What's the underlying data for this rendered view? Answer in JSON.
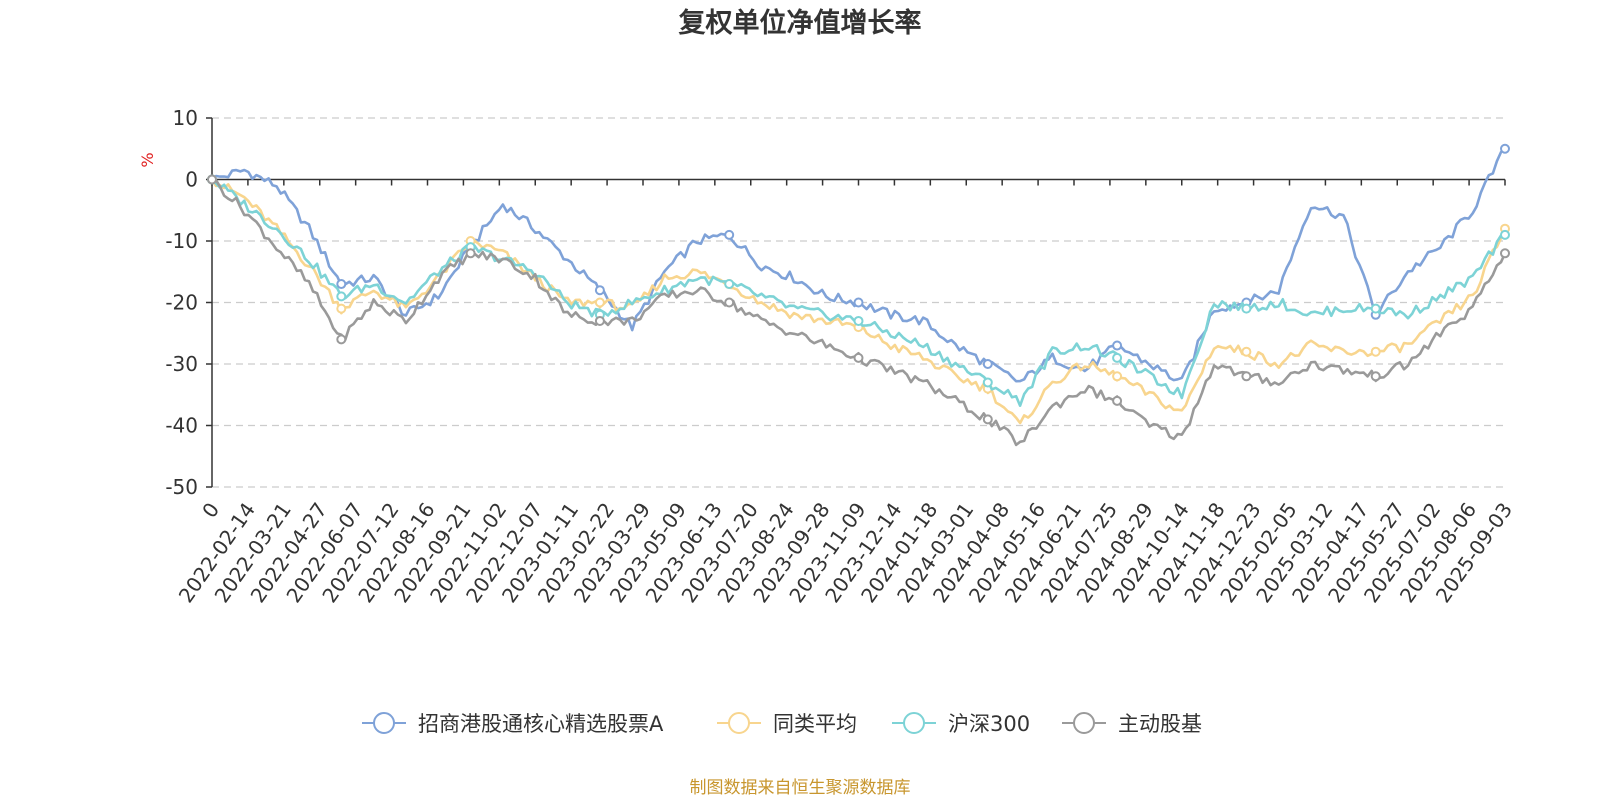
{
  "chart_data": {
    "type": "line",
    "title": "复权单位净值增长率",
    "ylabel": "%",
    "ylim": [
      -50,
      10
    ],
    "yticks": [
      10,
      0,
      -10,
      -20,
      -30,
      -40,
      -50
    ],
    "grid": true,
    "legend_position": "bottom",
    "source_note": "制图数据来自恒生聚源数据库",
    "x_tick_labels": [
      "0",
      "2022-02-14",
      "2022-03-21",
      "2022-04-27",
      "2022-06-07",
      "2022-07-12",
      "2022-08-16",
      "2022-09-21",
      "2022-11-02",
      "2022-12-07",
      "2023-01-11",
      "2023-02-22",
      "2023-03-29",
      "2023-05-09",
      "2023-06-13",
      "2023-07-20",
      "2023-08-24",
      "2023-09-28",
      "2023-11-09",
      "2023-12-14",
      "2024-01-18",
      "2024-03-01",
      "2024-04-08",
      "2024-05-16",
      "2024-06-21",
      "2024-07-25",
      "2024-08-29",
      "2024-10-14",
      "2024-11-18",
      "2024-12-23",
      "2025-02-05",
      "2025-03-12",
      "2025-04-17",
      "2025-05-27",
      "2025-07-02",
      "2025-08-06",
      "2025-09-03"
    ],
    "series": [
      {
        "name": "招商港股通核心精选股票A",
        "color": "#7fa2d8",
        "values": [
          0,
          1.5,
          -1,
          -8,
          -17,
          -16,
          -22,
          -19,
          -11,
          -4,
          -8,
          -13,
          -18,
          -24,
          -15,
          -10,
          -9,
          -14,
          -16,
          -19,
          -20,
          -22,
          -23,
          -27,
          -30,
          -33,
          -29,
          -31,
          -27,
          -30,
          -33,
          -21,
          -20,
          -18,
          -4,
          -6,
          -22,
          -15,
          -11,
          -5,
          5
        ]
      },
      {
        "name": "同类平均",
        "color": "#f8d58e",
        "values": [
          0,
          -3,
          -8,
          -14,
          -21,
          -18,
          -21,
          -16,
          -10,
          -12,
          -16,
          -20,
          -20,
          -21,
          -16,
          -15,
          -17,
          -20,
          -22,
          -23,
          -24,
          -27,
          -29,
          -32,
          -34,
          -40,
          -33,
          -30,
          -32,
          -35,
          -38,
          -27,
          -28,
          -30,
          -27,
          -28,
          -28,
          -27,
          -23,
          -19,
          -8
        ]
      },
      {
        "name": "沪深300",
        "color": "#7dd3d6",
        "values": [
          0,
          -4,
          -8,
          -13,
          -19,
          -17,
          -20,
          -15,
          -11,
          -13,
          -15,
          -20,
          -22,
          -20,
          -18,
          -16,
          -17,
          -19,
          -21,
          -22,
          -23,
          -25,
          -27,
          -30,
          -33,
          -36,
          -28,
          -27,
          -29,
          -32,
          -35,
          -20,
          -21,
          -20,
          -22,
          -21,
          -21,
          -22,
          -19,
          -16,
          -9
        ]
      },
      {
        "name": "主动股基",
        "color": "#9a9a9a",
        "values": [
          0,
          -5,
          -11,
          -17,
          -26,
          -20,
          -23,
          -16,
          -12,
          -13,
          -16,
          -22,
          -23,
          -23,
          -19,
          -18,
          -20,
          -23,
          -25,
          -27,
          -29,
          -31,
          -33,
          -36,
          -39,
          -43,
          -37,
          -34,
          -36,
          -40,
          -42,
          -30,
          -32,
          -33,
          -30,
          -31,
          -32,
          -30,
          -25,
          -21,
          -12
        ]
      }
    ]
  }
}
